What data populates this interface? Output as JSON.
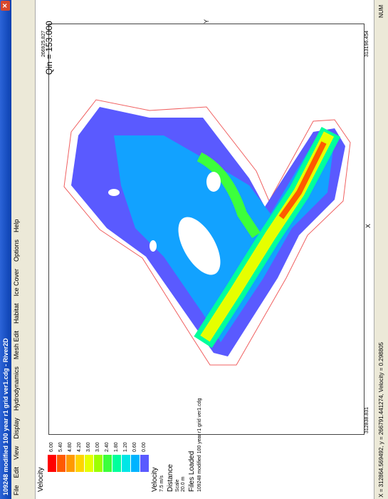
{
  "window": {
    "title": "109248 modified 100 year r1 grid ver1.cdg - River2D",
    "menu": [
      "File",
      "Edit",
      "View",
      "Display",
      "Hydrodynamics",
      "Mesh Edit",
      "Habitat",
      "Ice Cover",
      "Options",
      "Help"
    ]
  },
  "plot": {
    "qin": "Qin = 153.000",
    "x_label": "X",
    "y_label": "Y",
    "x_min": "312838.831",
    "x_max": "313196.454",
    "y_max": "266925.827"
  },
  "legend": {
    "title": "Velocity",
    "levels": [
      {
        "label": "6.00",
        "color": "#ff0000"
      },
      {
        "label": "5.40",
        "color": "#ff5a00"
      },
      {
        "label": "4.80",
        "color": "#ff9a00"
      },
      {
        "label": "4.20",
        "color": "#ffd400"
      },
      {
        "label": "3.60",
        "color": "#e6ff00"
      },
      {
        "label": "3.00",
        "color": "#9cff00"
      },
      {
        "label": "2.40",
        "color": "#3cff3c"
      },
      {
        "label": "1.80",
        "color": "#00ff9c"
      },
      {
        "label": "1.20",
        "color": "#00e6e6"
      },
      {
        "label": "0.60",
        "color": "#00b4ff"
      },
      {
        "label": "0.00",
        "color": "#5a5aff"
      }
    ],
    "vector_title": "Velocity",
    "vector_scale": "7.5 m/s",
    "distance_title": "Distance",
    "distance_sub": "Scale",
    "distance_scale": "20.0 m",
    "files_title": "Files Loaded",
    "file": "109248 modified 100 year r1 grid ver1.cdg"
  },
  "status": {
    "text": "X = 312864.569492, y = 266791.441274, Velocity = 0.298805",
    "num": "NUM"
  }
}
